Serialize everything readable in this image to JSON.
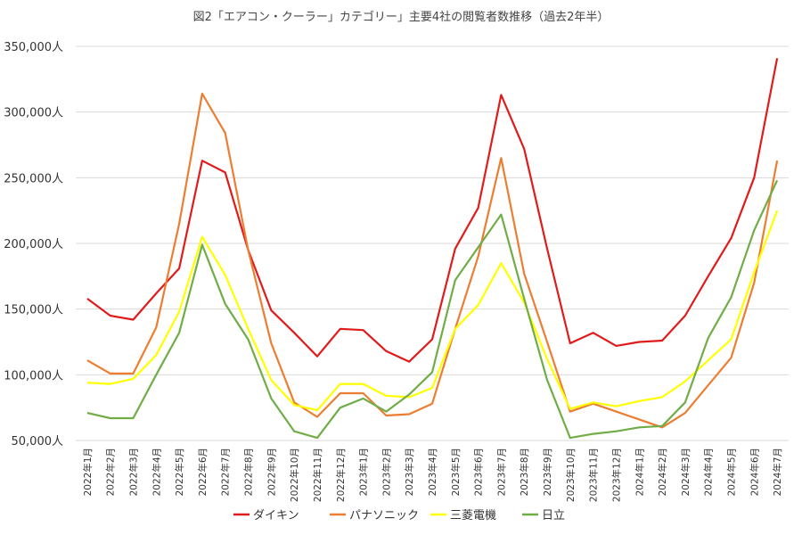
{
  "chart_data": {
    "type": "line",
    "title": "図2「エアコン・クーラー」カテゴリー」主要4社の閲覧者数推移（過去2年半）",
    "xlabel": "",
    "ylabel": "",
    "ylim": [
      50000,
      350000
    ],
    "y_ticks": [
      {
        "value": 50000,
        "label": "50,000人"
      },
      {
        "value": 100000,
        "label": "100,000人"
      },
      {
        "value": 150000,
        "label": "150,000人"
      },
      {
        "value": 200000,
        "label": "200,000人"
      },
      {
        "value": 250000,
        "label": "250,000人"
      },
      {
        "value": 300000,
        "label": "300,000人"
      },
      {
        "value": 350000,
        "label": "350,000人"
      }
    ],
    "grid": true,
    "legend_position": "bottom",
    "categories": [
      "2022年1月",
      "2022年2月",
      "2022年3月",
      "2022年4月",
      "2022年5月",
      "2022年6月",
      "2022年7月",
      "2022年8月",
      "2022年9月",
      "2022年10月",
      "2022年11月",
      "2022年12月",
      "2023年1月",
      "2023年2月",
      "2023年3月",
      "2023年4月",
      "2023年5月",
      "2023年6月",
      "2023年7月",
      "2023年8月",
      "2023年9月",
      "2023年10月",
      "2023年11月",
      "2023年12月",
      "2024年1月",
      "2024年2月",
      "2024年3月",
      "2024年4月",
      "2024年5月",
      "2024年6月",
      "2024年7月"
    ],
    "series": [
      {
        "name": "ダイキン",
        "color": "#e01b1b",
        "values": [
          158000,
          145000,
          142000,
          162000,
          181000,
          263000,
          254000,
          195000,
          149000,
          132000,
          114000,
          135000,
          134000,
          118000,
          110000,
          127000,
          196000,
          227000,
          313000,
          272000,
          196000,
          124000,
          132000,
          122000,
          125000,
          126000,
          145000,
          175000,
          204000,
          250000,
          341000
        ]
      },
      {
        "name": "パナソニック",
        "color": "#ed7d31",
        "values": [
          111000,
          101000,
          101000,
          136000,
          215000,
          314000,
          284000,
          195000,
          124000,
          79000,
          68000,
          86000,
          86000,
          69000,
          70000,
          78000,
          135000,
          190000,
          265000,
          177000,
          125000,
          72000,
          78000,
          72000,
          66000,
          60000,
          71000,
          92000,
          113000,
          170000,
          263000
        ]
      },
      {
        "name": "三菱電機",
        "color": "#ffff00",
        "values": [
          94000,
          93000,
          97000,
          115000,
          148000,
          205000,
          176000,
          135000,
          96000,
          77000,
          73000,
          93000,
          93000,
          84000,
          83000,
          90000,
          135000,
          153000,
          185000,
          155000,
          112000,
          74000,
          79000,
          76000,
          80000,
          83000,
          95000,
          111000,
          127000,
          178000,
          225000
        ]
      },
      {
        "name": "日立",
        "color": "#70ad47",
        "values": [
          71000,
          67000,
          67000,
          100000,
          132000,
          199000,
          154000,
          127000,
          82000,
          57000,
          52000,
          75000,
          82000,
          72000,
          85000,
          102000,
          172000,
          197000,
          222000,
          158000,
          96000,
          52000,
          55000,
          57000,
          60000,
          61000,
          79000,
          128000,
          159000,
          210000,
          248000
        ]
      }
    ]
  }
}
